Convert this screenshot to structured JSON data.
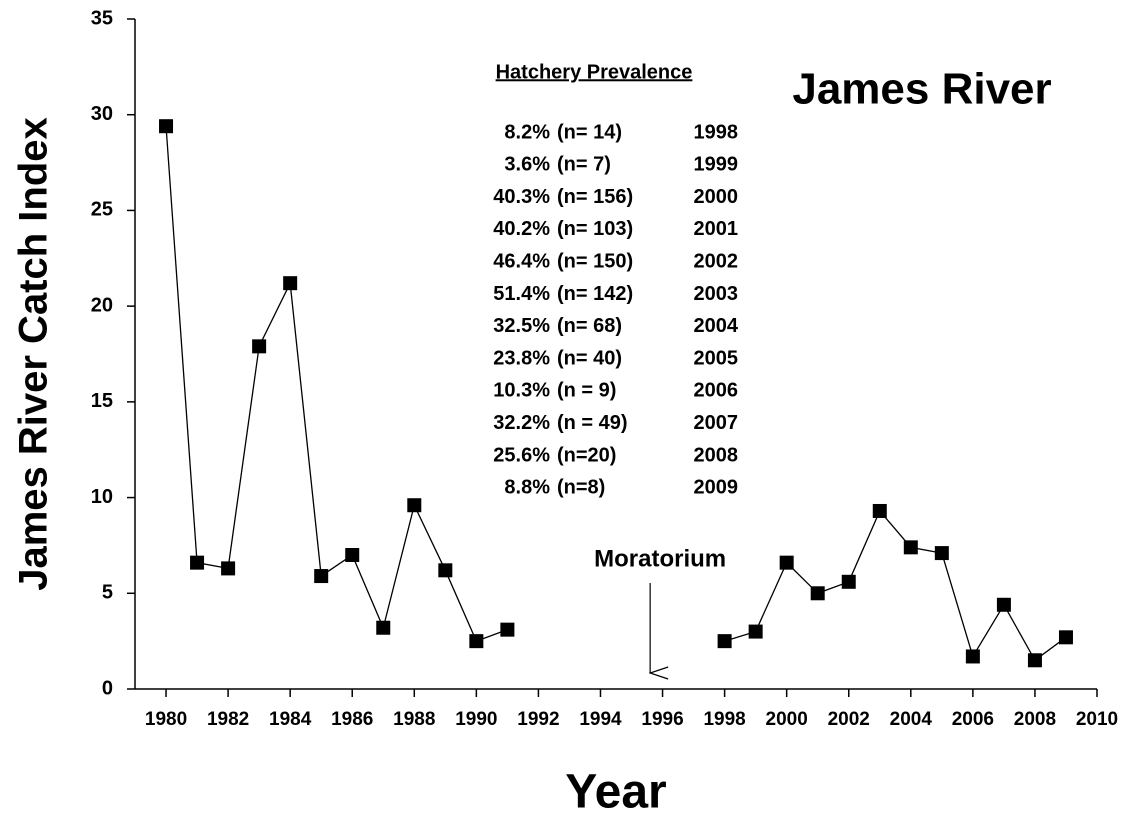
{
  "chart_data": {
    "type": "line",
    "title": "James River",
    "x_label": "Year",
    "y_label": "James River Catch Index",
    "x": [
      1980,
      1981,
      1982,
      1983,
      1984,
      1985,
      1986,
      1987,
      1988,
      1989,
      1990,
      1991,
      1992,
      1993,
      1994,
      1995,
      1996,
      1997,
      1998,
      1999,
      2000,
      2001,
      2002,
      2003,
      2004,
      2005,
      2006,
      2007,
      2008,
      2009
    ],
    "series": [
      {
        "name": "James River",
        "color": "#000000",
        "values": [
          29.4,
          6.6,
          6.3,
          17.9,
          21.2,
          5.9,
          7.0,
          3.2,
          9.6,
          6.2,
          2.5,
          3.1,
          null,
          null,
          null,
          null,
          null,
          null,
          2.5,
          3.0,
          6.6,
          5.0,
          5.6,
          9.3,
          7.4,
          7.1,
          1.7,
          4.4,
          1.5,
          2.7
        ]
      }
    ],
    "xlim": [
      1979,
      2010
    ],
    "xticks": [
      1980,
      1982,
      1984,
      1986,
      1988,
      1990,
      1992,
      1994,
      1996,
      1998,
      2000,
      2002,
      2004,
      2006,
      2008,
      2010
    ],
    "ylim": [
      0,
      35
    ],
    "yticks": [
      0,
      5,
      10,
      15,
      20,
      25,
      30,
      35
    ],
    "annotation": {
      "text": "Moratorium",
      "x": 1995.6
    },
    "table_title": "Hatchery Prevalence",
    "table_rows": [
      [
        "8.2%",
        "(n= 14)",
        "1998"
      ],
      [
        "3.6%",
        "(n= 7)",
        "1999"
      ],
      [
        "40.3%",
        "(n= 156)",
        "2000"
      ],
      [
        "40.2%",
        "(n= 103)",
        "2001"
      ],
      [
        "46.4%",
        "(n= 150)",
        "2002"
      ],
      [
        "51.4%",
        "(n= 142)",
        "2003"
      ],
      [
        "32.5%",
        "(n= 68)",
        "2004"
      ],
      [
        "23.8%",
        "(n= 40)",
        "2005"
      ],
      [
        "10.3%",
        "(n = 9)",
        "2006"
      ],
      [
        "32.2%",
        "(n = 49)",
        "2007"
      ],
      [
        "25.6%",
        "(n=20)",
        "2008"
      ],
      [
        "8.8%",
        "(n=8)",
        "2009"
      ]
    ]
  }
}
